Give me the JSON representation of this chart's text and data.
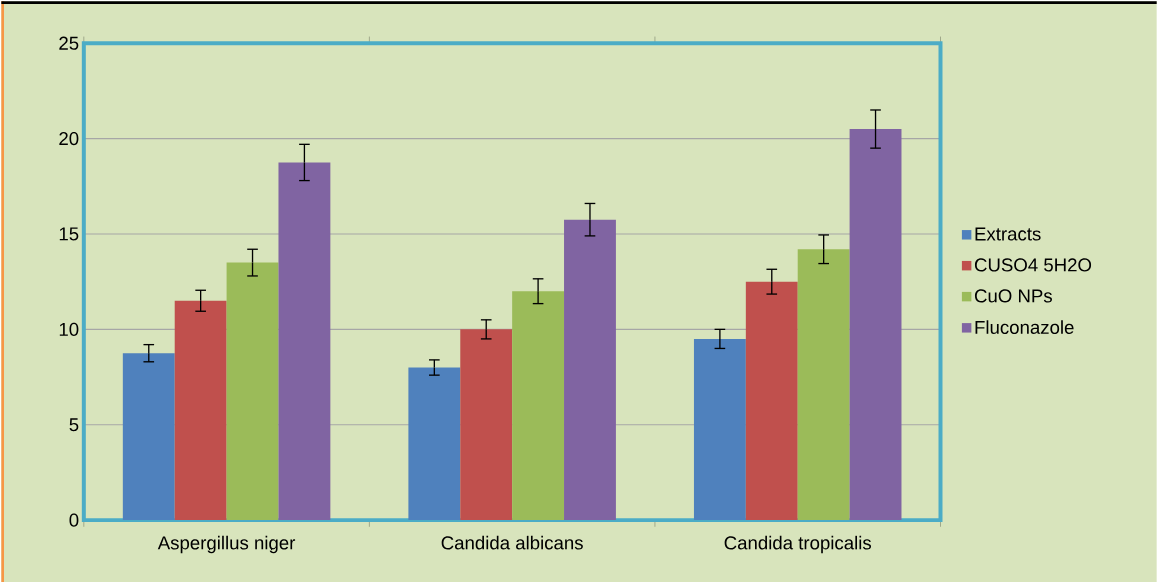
{
  "chart_data": {
    "type": "bar",
    "categories": [
      "Aspergillus niger",
      "Candida albicans",
      "Candida tropicalis"
    ],
    "series": [
      {
        "name": "Extracts",
        "color": "#4f81bd",
        "values": [
          8.75,
          8,
          9.5
        ],
        "errors": [
          0.45,
          0.4,
          0.5
        ]
      },
      {
        "name": "CUSO4 5H2O",
        "color": "#c0504d",
        "values": [
          11.5,
          10,
          12.5
        ],
        "errors": [
          0.55,
          0.5,
          0.65
        ]
      },
      {
        "name": "CuO NPs",
        "color": "#9bbb59",
        "values": [
          13.5,
          12,
          14.2
        ],
        "errors": [
          0.7,
          0.65,
          0.75
        ]
      },
      {
        "name": "Fluconazole",
        "color": "#8064a2",
        "values": [
          18.75,
          15.75,
          20.5
        ],
        "errors": [
          0.95,
          0.85,
          1
        ]
      }
    ],
    "ylim": [
      0,
      25
    ],
    "yticks": [
      0,
      5,
      10,
      15,
      20,
      25
    ],
    "grid": "y",
    "legend": "right"
  }
}
